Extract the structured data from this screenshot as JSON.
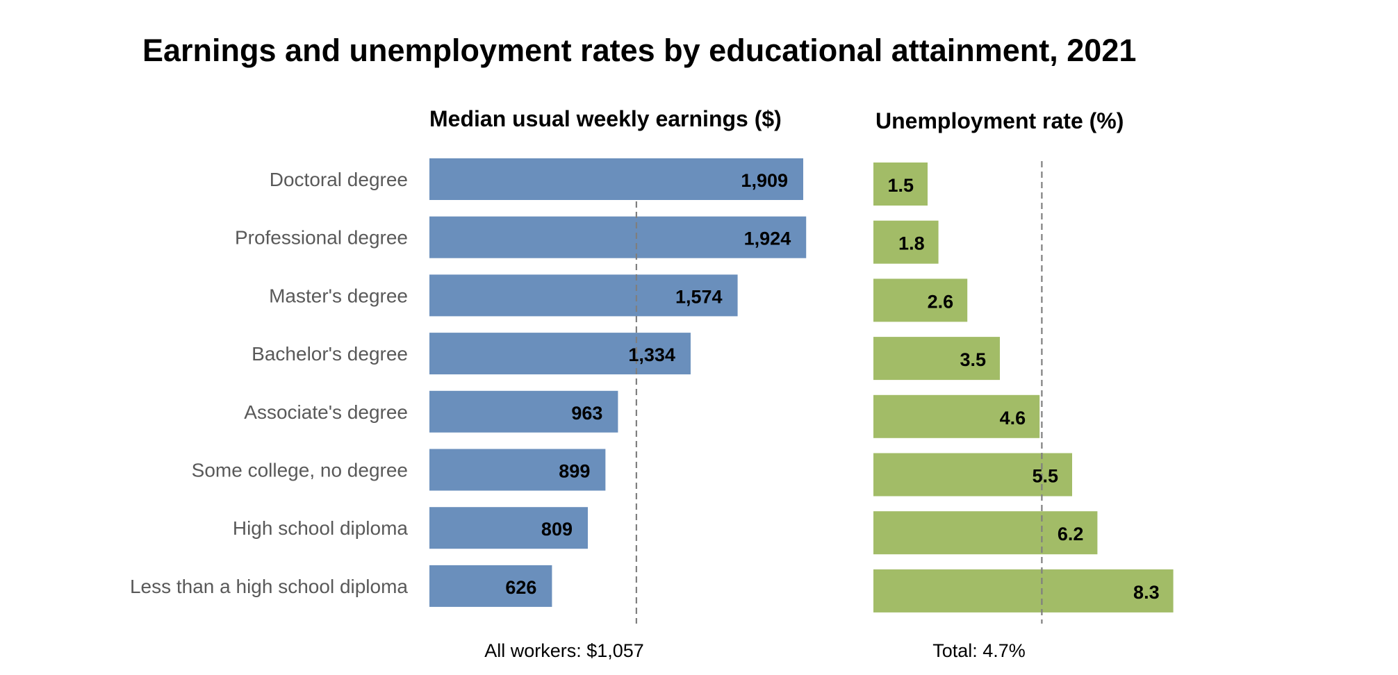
{
  "chart_data": [
    {
      "type": "bar",
      "orientation": "horizontal",
      "title": "Median usual weekly earnings ($)",
      "categories": [
        "Doctoral degree",
        "Professional degree",
        "Master's degree",
        "Bachelor's degree",
        "Associate's degree",
        "Some college, no degree",
        "High school diploma",
        "Less than a high school diploma"
      ],
      "values": [
        1909,
        1924,
        1574,
        1334,
        963,
        899,
        809,
        626
      ],
      "value_labels": [
        "1,909",
        "1,924",
        "1,574",
        "1,334",
        "963",
        "899",
        "809",
        "626"
      ],
      "reference_line": {
        "value": 1057,
        "label": "All workers: $1,057"
      },
      "xlim": [
        0,
        2000
      ],
      "color": "#6a8fbc",
      "grid": false
    },
    {
      "type": "bar",
      "orientation": "horizontal",
      "title": "Unemployment rate (%)",
      "categories": [
        "Doctoral degree",
        "Professional degree",
        "Master's degree",
        "Bachelor's degree",
        "Associate's degree",
        "Some college, no degree",
        "High school diploma",
        "Less than a high school diploma"
      ],
      "values": [
        1.5,
        1.8,
        2.6,
        3.5,
        4.6,
        5.5,
        6.2,
        8.3
      ],
      "value_labels": [
        "1.5",
        "1.8",
        "2.6",
        "3.5",
        "4.6",
        "5.5",
        "6.2",
        "8.3"
      ],
      "reference_line": {
        "value": 4.7,
        "label": "Total: 4.7%"
      },
      "xlim": [
        0,
        9
      ],
      "color": "#a2bc67",
      "grid": false
    }
  ],
  "title": "Earnings and unemployment rates by educational attainment, 2021"
}
